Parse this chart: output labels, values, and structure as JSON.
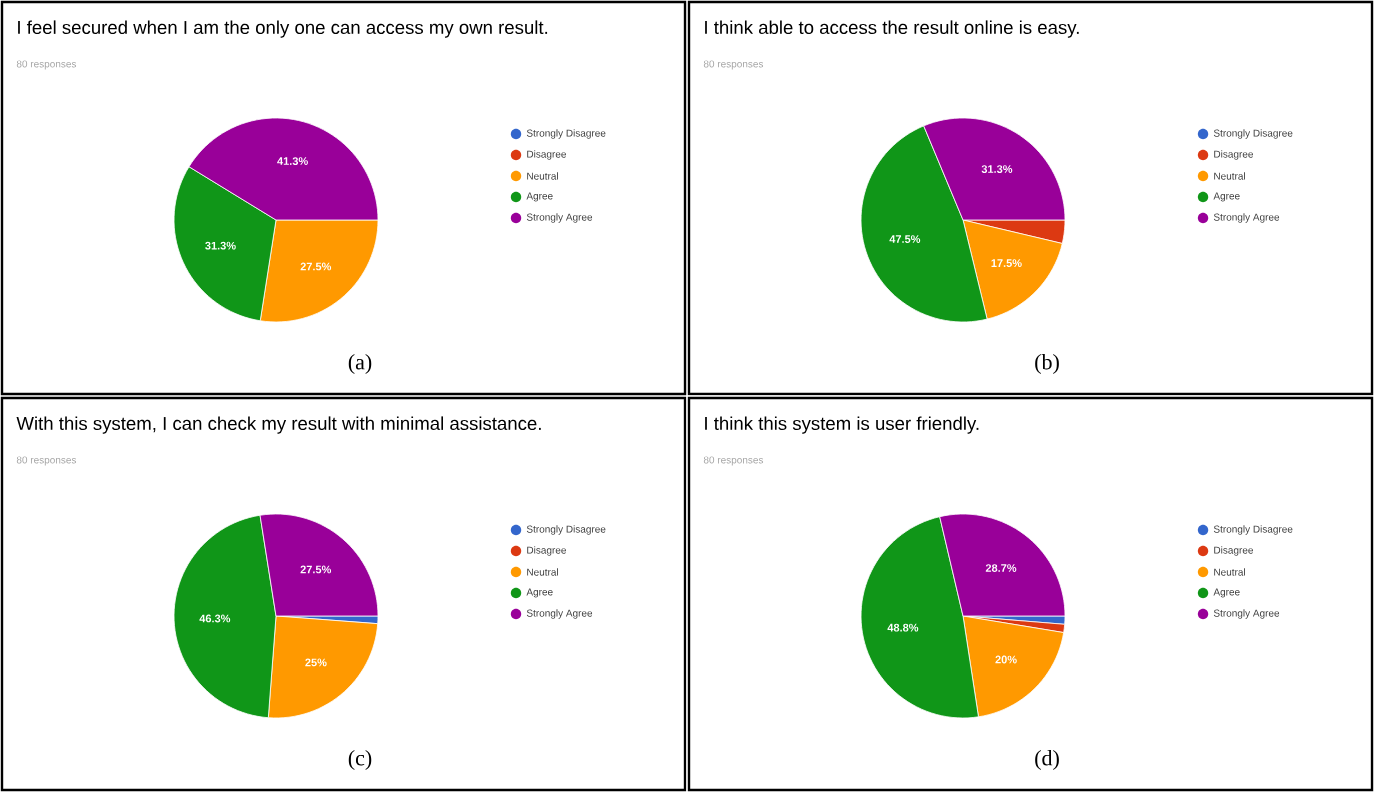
{
  "chart_data": [
    {
      "type": "pie",
      "title": "I feel secured when I am the only one can access my own result.",
      "subtitle": "80 responses",
      "categories": [
        "Strongly Disagree",
        "Disagree",
        "Neutral",
        "Agree",
        "Strongly Agree"
      ],
      "values": [
        0,
        0,
        27.5,
        31.3,
        41.3
      ],
      "colors": [
        "#3366cc",
        "#dc3912",
        "#ff9900",
        "#109618",
        "#990099"
      ],
      "value_labels": [
        null,
        null,
        "27.5%",
        "31.3%",
        "41.3%"
      ],
      "legend": "right",
      "annotations": [
        "(a)"
      ]
    },
    {
      "type": "pie",
      "title": "I think able to access the result online is easy.",
      "subtitle": "80 responses",
      "categories": [
        "Strongly Disagree",
        "Disagree",
        "Neutral",
        "Agree",
        "Strongly Agree"
      ],
      "values": [
        0,
        3.7,
        17.5,
        47.5,
        31.3
      ],
      "colors": [
        "#3366cc",
        "#dc3912",
        "#ff9900",
        "#109618",
        "#990099"
      ],
      "value_labels": [
        null,
        null,
        "17.5%",
        "47.5%",
        "31.3%"
      ],
      "legend": "right",
      "annotations": [
        "(b)"
      ]
    },
    {
      "type": "pie",
      "title": "With this system, I can check my result with minimal assistance.",
      "subtitle": "80 responses",
      "categories": [
        "Strongly Disagree",
        "Disagree",
        "Neutral",
        "Agree",
        "Strongly Agree"
      ],
      "values": [
        1.2,
        0,
        25,
        46.3,
        27.5
      ],
      "colors": [
        "#3366cc",
        "#dc3912",
        "#ff9900",
        "#109618",
        "#990099"
      ],
      "value_labels": [
        null,
        null,
        "25%",
        "46.3%",
        "27.5%"
      ],
      "legend": "right",
      "annotations": [
        "(c)"
      ]
    },
    {
      "type": "pie",
      "title": "I think this system is user friendly.",
      "subtitle": "80 responses",
      "categories": [
        "Strongly Disagree",
        "Disagree",
        "Neutral",
        "Agree",
        "Strongly Agree"
      ],
      "values": [
        1.3,
        1.3,
        20,
        48.8,
        28.7
      ],
      "colors": [
        "#3366cc",
        "#dc3912",
        "#ff9900",
        "#109618",
        "#990099"
      ],
      "value_labels": [
        null,
        null,
        "20%",
        "48.8%",
        "28.7%"
      ],
      "legend": "right",
      "annotations": [
        "(d)"
      ]
    }
  ]
}
